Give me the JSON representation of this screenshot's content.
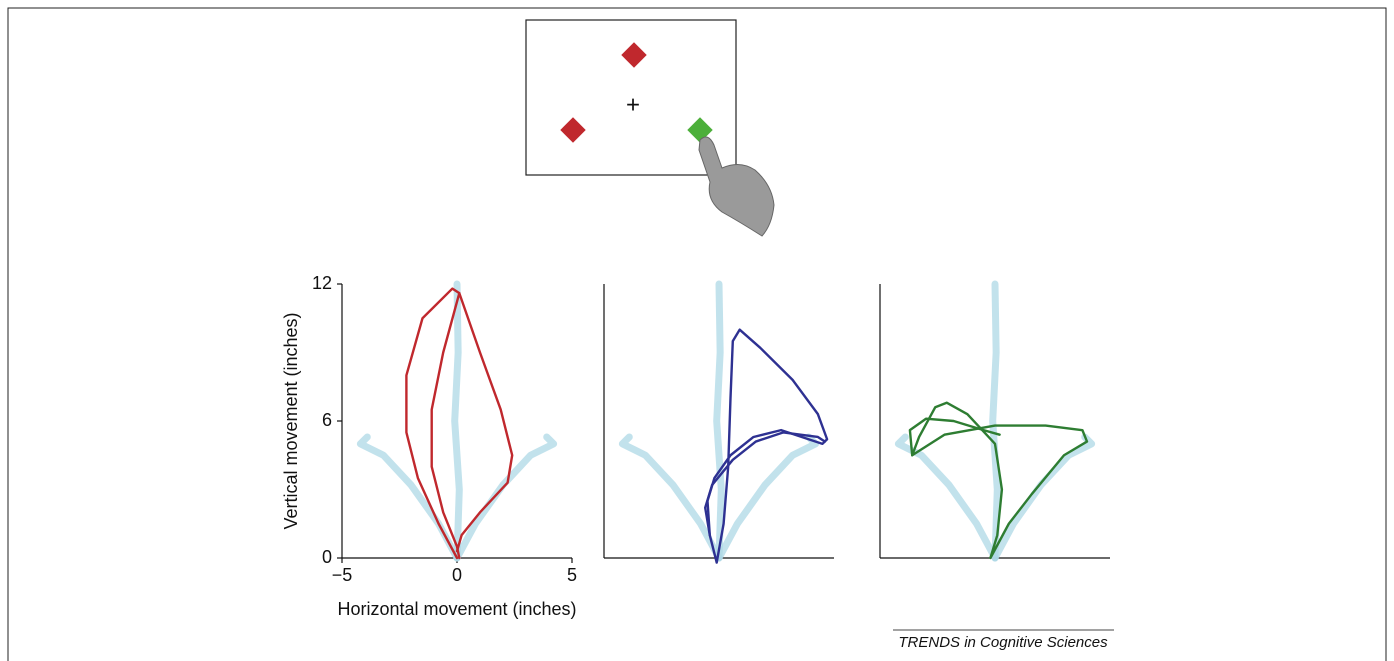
{
  "stimulus": {
    "fixation": "+"
  },
  "credit": "TRENDS in Cognitive Sciences",
  "chart_data": [
    {
      "type": "line",
      "x_label": "Horizontal movement (inches)",
      "y_label": "Vertical movement (inches)",
      "xlim": [
        -5,
        5
      ],
      "ylim": [
        0,
        12
      ],
      "xticks": [
        {
          "value": -5,
          "label": "−5"
        },
        0,
        5
      ],
      "yticks": [
        0,
        6,
        12
      ],
      "series": [
        {
          "color": "#add8e6",
          "x": [
            0,
            0.1,
            -0.1,
            0.05,
            0
          ],
          "values": [
            0,
            3,
            6,
            9,
            12
          ]
        },
        {
          "color": "#add8e6",
          "x": [
            0,
            -0.8,
            -2,
            -3.2,
            -4.2,
            -3.9
          ],
          "values": [
            0,
            1.5,
            3.2,
            4.5,
            5,
            5.3
          ]
        },
        {
          "color": "#add8e6",
          "x": [
            0,
            0.8,
            2,
            3.2,
            4.2,
            3.9
          ],
          "values": [
            0,
            1.5,
            3.2,
            4.5,
            5,
            5.3
          ]
        },
        {
          "color": "#c0282d",
          "x": [
            0,
            -0.8,
            -1.7,
            -2.2,
            -2.2,
            -1.5,
            -0.2,
            0.1,
            1,
            1.9,
            2.4,
            2.2,
            1,
            0.2,
            0
          ],
          "values": [
            0,
            1.5,
            3.5,
            5.5,
            8,
            10.5,
            11.8,
            11.6,
            9,
            6.5,
            4.5,
            3.3,
            2,
            1,
            0.3
          ]
        },
        {
          "color": "#c0282d",
          "x": [
            0.1,
            -0.6,
            -1.1,
            -1.1,
            -0.6,
            0,
            0.1
          ],
          "values": [
            11.6,
            9,
            6.5,
            4,
            2,
            0.5,
            0
          ]
        }
      ]
    },
    {
      "type": "line",
      "xlim": [
        -5,
        5
      ],
      "ylim": [
        0,
        12
      ],
      "series": [
        {
          "color": "#add8e6",
          "x": [
            0,
            0.1,
            -0.1,
            0.05,
            0
          ],
          "values": [
            0,
            3,
            6,
            9,
            12
          ]
        },
        {
          "color": "#add8e6",
          "x": [
            0,
            -0.8,
            -2,
            -3.2,
            -4.2,
            -3.9
          ],
          "values": [
            0,
            1.5,
            3.2,
            4.5,
            5,
            5.3
          ]
        },
        {
          "color": "#add8e6",
          "x": [
            0,
            0.8,
            2,
            3.2,
            4.2,
            3.9
          ],
          "values": [
            0,
            1.5,
            3.2,
            4.5,
            5,
            5.3
          ]
        },
        {
          "color": "#2e3192",
          "x": [
            -0.1,
            -0.4,
            -0.5,
            -0.2,
            0.5,
            1.5,
            2.7,
            4.5,
            4.7,
            4.3,
            3.2,
            1.8,
            0.9,
            0.6,
            0.5,
            0.4,
            0.2,
            -0.1
          ],
          "values": [
            -0.2,
            1,
            2.5,
            3.5,
            4.5,
            5.3,
            5.6,
            5,
            5.2,
            6.3,
            7.8,
            9.2,
            10,
            9.5,
            7,
            4,
            1.5,
            -0.2
          ]
        },
        {
          "color": "#2e3192",
          "x": [
            -0.4,
            -0.6,
            -0.3,
            0.6,
            1.6,
            2.8,
            4.3,
            4.6
          ],
          "values": [
            1,
            2.2,
            3.2,
            4.3,
            5.1,
            5.5,
            5.3,
            5.1
          ]
        }
      ]
    },
    {
      "type": "line",
      "xlim": [
        -5,
        5
      ],
      "ylim": [
        0,
        12
      ],
      "series": [
        {
          "color": "#add8e6",
          "x": [
            0,
            0.1,
            -0.1,
            0.05,
            0
          ],
          "values": [
            0,
            3,
            6,
            9,
            12
          ]
        },
        {
          "color": "#add8e6",
          "x": [
            0,
            -0.8,
            -2,
            -3.2,
            -4.2,
            -3.9
          ],
          "values": [
            0,
            1.5,
            3.2,
            4.5,
            5,
            5.3
          ]
        },
        {
          "color": "#add8e6",
          "x": [
            0,
            0.8,
            2,
            3.2,
            4.2,
            3.9
          ],
          "values": [
            0,
            1.5,
            3.2,
            4.5,
            5,
            5.3
          ]
        },
        {
          "color": "#2e7d32",
          "x": [
            -0.2,
            0.6,
            1.6,
            3,
            4,
            3.8,
            2.2,
            0,
            -2.2,
            -3.6,
            -3.3,
            -2.6,
            -2.1,
            -1.2,
            0,
            0.3,
            0.1,
            -0.2
          ],
          "values": [
            0,
            1.5,
            2.8,
            4.5,
            5.1,
            5.6,
            5.8,
            5.8,
            5.4,
            4.5,
            5.3,
            6.6,
            6.8,
            6.3,
            5,
            3,
            1,
            0
          ]
        },
        {
          "color": "#2e7d32",
          "x": [
            -3.6,
            -3.7,
            -3,
            -1.8,
            -0.5,
            0.2
          ],
          "values": [
            4.5,
            5.6,
            6.1,
            6,
            5.6,
            5.4
          ]
        }
      ]
    }
  ]
}
